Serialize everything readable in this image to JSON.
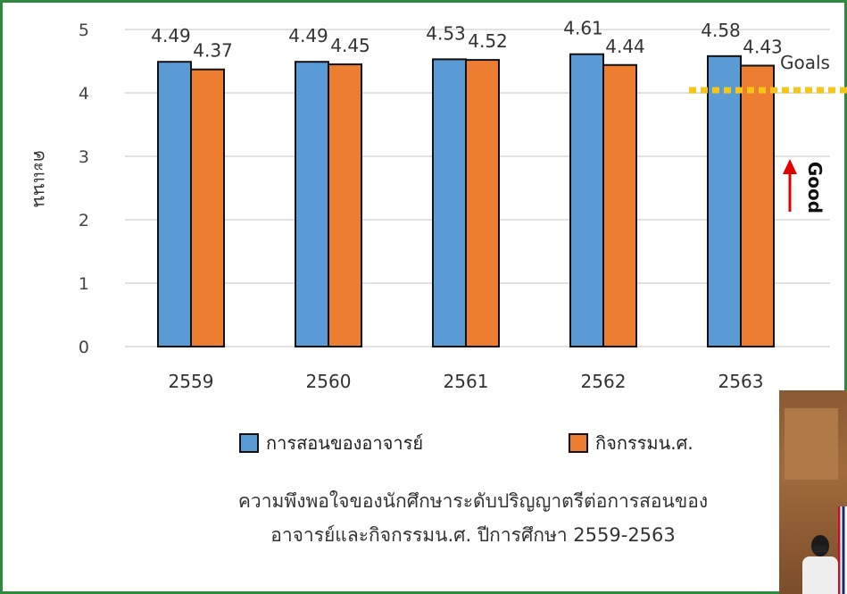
{
  "chart_data": {
    "type": "bar",
    "categories": [
      "2559",
      "2560",
      "2561",
      "2562",
      "2563"
    ],
    "series": [
      {
        "name": "การสอนของอาจารย์",
        "values": [
          4.49,
          4.49,
          4.53,
          4.61,
          4.58
        ],
        "color": "#5b9bd5"
      },
      {
        "name": "กิจกรรมน.ศ.",
        "values": [
          4.37,
          4.45,
          4.52,
          4.44,
          4.43
        ],
        "color": "#ed7d31"
      }
    ],
    "data_labels": [
      [
        "4.49",
        "4.49",
        "4.53",
        "4.61",
        "4.58"
      ],
      [
        "4.37",
        "4.45",
        "4.52",
        "4.44",
        "4.43"
      ]
    ],
    "ylabel": "คะแนน",
    "yticks": [
      "0",
      "1",
      "2",
      "3",
      "4",
      "5"
    ],
    "ylim": [
      0,
      5
    ],
    "grid": true,
    "legend": "bottom",
    "goal_label": "Goals",
    "goal_value": 4.0,
    "goal_color": "#f5c518",
    "direction_label": "Good",
    "direction_color": "#e00000",
    "caption_lines": [
      "ความพึงพอใจของนักศึกษาระดับปริญญาตรีต่อการสอนของ",
      "อาจารย์และกิจกรรมน.ศ. ปีการศึกษา 2559-2563"
    ]
  },
  "frame_color": "#2e8b3e"
}
